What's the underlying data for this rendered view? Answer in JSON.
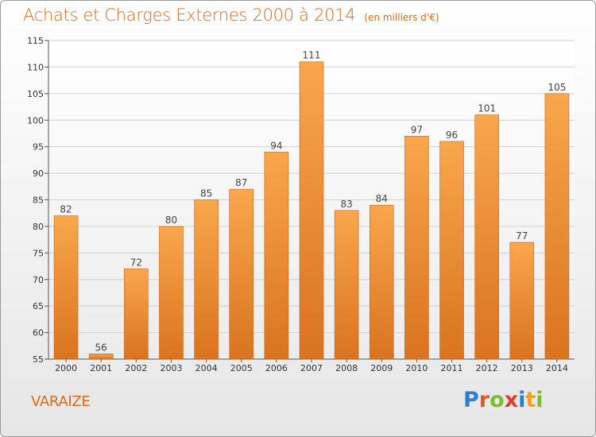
{
  "header": {
    "title": "Achats et Charges Externes 2000 à 2014",
    "unit": "(en milliers d'€)"
  },
  "footer": {
    "commune": "VARAIZE",
    "brand": [
      "P",
      "r",
      "o",
      "x",
      "i",
      "t",
      "i"
    ],
    "brand_colors": [
      "#2a7fd0",
      "#e55a1c",
      "#7bbf2a",
      "#e23a2e",
      "#2a7fd0",
      "#f0a020",
      "#7bbf2a"
    ]
  },
  "colors": {
    "bar_top": "#f9a64d",
    "bar_bottom": "#d9731f",
    "title": "#d96a1b",
    "grid": "#d0d0d0"
  },
  "chart_data": {
    "type": "bar",
    "title": "Achats et Charges Externes 2000 à 2014",
    "subtitle": "(en milliers d'€)",
    "categories": [
      "2000",
      "2001",
      "2002",
      "2003",
      "2004",
      "2005",
      "2006",
      "2007",
      "2008",
      "2009",
      "2010",
      "2011",
      "2012",
      "2013",
      "2014"
    ],
    "values": [
      82,
      56,
      72,
      80,
      85,
      87,
      94,
      111,
      83,
      84,
      97,
      96,
      101,
      77,
      105
    ],
    "ylim": [
      55,
      115
    ],
    "yticks": [
      55,
      60,
      65,
      70,
      75,
      80,
      85,
      90,
      95,
      100,
      105,
      110,
      115
    ],
    "grid": true,
    "data_labels": true
  }
}
